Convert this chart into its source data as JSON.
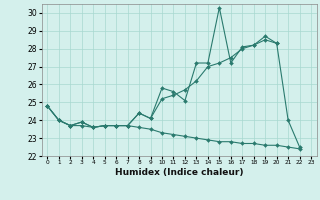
{
  "x": [
    0,
    1,
    2,
    3,
    4,
    5,
    6,
    7,
    8,
    9,
    10,
    11,
    12,
    13,
    14,
    15,
    16,
    17,
    18,
    19,
    20,
    21,
    22,
    23
  ],
  "line_spiky": [
    24.8,
    24.0,
    23.7,
    23.9,
    23.6,
    23.7,
    23.7,
    23.7,
    24.4,
    24.1,
    25.8,
    25.6,
    25.1,
    27.2,
    27.2,
    30.3,
    27.2,
    28.1,
    28.2,
    28.5,
    28.3,
    24.0,
    22.5,
    null
  ],
  "line_trend": [
    24.8,
    24.0,
    23.7,
    23.9,
    23.6,
    23.7,
    23.7,
    23.7,
    24.4,
    24.1,
    25.2,
    25.4,
    25.7,
    26.2,
    27.0,
    27.2,
    27.5,
    28.0,
    28.2,
    28.7,
    28.3,
    null,
    null,
    null
  ],
  "line_decline": [
    24.8,
    24.0,
    23.7,
    23.7,
    23.6,
    23.7,
    23.7,
    23.7,
    23.6,
    23.5,
    23.3,
    23.2,
    23.1,
    23.0,
    22.9,
    22.8,
    22.8,
    22.7,
    22.7,
    22.6,
    22.6,
    22.5,
    22.4,
    null
  ],
  "color": "#2a7a6e",
  "bg_color": "#d4f0ec",
  "grid_color": "#a8d8d0",
  "xlabel": "Humidex (Indice chaleur)",
  "ylim": [
    22,
    30.5
  ],
  "xlim": [
    -0.5,
    23.5
  ],
  "yticks": [
    22,
    23,
    24,
    25,
    26,
    27,
    28,
    29,
    30
  ],
  "xticks": [
    0,
    1,
    2,
    3,
    4,
    5,
    6,
    7,
    8,
    9,
    10,
    11,
    12,
    13,
    14,
    15,
    16,
    17,
    18,
    19,
    20,
    21,
    22,
    23
  ]
}
